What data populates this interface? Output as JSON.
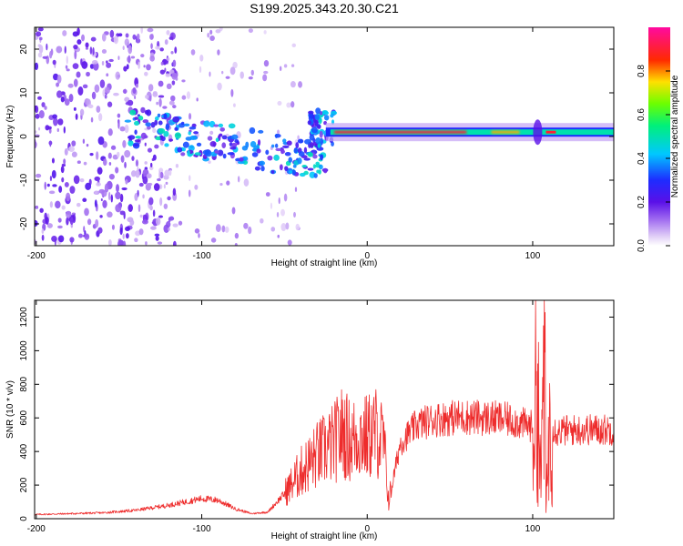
{
  "title": "S199.2025.343.20.30.C21",
  "colors": {
    "signal": "#ee2c2c",
    "frame": "#000000"
  },
  "chart_data": [
    {
      "type": "heatmap",
      "name": "spectrogram",
      "xlabel": "Height of straight line (km)",
      "ylabel": "Frequency (Hz)",
      "xlim": [
        -201,
        149
      ],
      "ylim": [
        -25,
        25
      ],
      "xticks": [
        -200,
        -100,
        0,
        100
      ],
      "xtick_labels": [
        "-200",
        "-100",
        "0",
        "100"
      ],
      "yticks": [
        -20,
        -10,
        0,
        10,
        20
      ],
      "ytick_labels": [
        "-20",
        "-10",
        "0",
        "10",
        "20"
      ],
      "colorbar": {
        "label": "Normalized spectral amplitude",
        "range": [
          0,
          1
        ],
        "ticks": [
          0,
          0.2,
          0.4,
          0.6,
          0.8
        ],
        "tick_labels": [
          "0.0",
          "0.2",
          "0.4",
          "0.6",
          "0.8"
        ],
        "colormap": "rainbow (white-purple-blue-cyan-green-yellow-red-magenta)"
      },
      "features": [
        {
          "desc": "strong horizontal band",
          "x": [
            -25,
            149
          ],
          "freq_hz": 1,
          "amplitude": 0.9
        },
        {
          "desc": "descending blob trend",
          "x": [
            -145,
            -70
          ],
          "freq_hz_start": 2,
          "freq_hz_end": -5,
          "amplitude": 0.35
        },
        {
          "desc": "scattered noise",
          "x": [
            -201,
            -140
          ],
          "freq_hz": [
            -25,
            25
          ],
          "amplitude": 0.1
        }
      ]
    },
    {
      "type": "line",
      "name": "snr",
      "xlabel": "Height of straight line (km)",
      "ylabel": "SNR (10 * v/v)",
      "xlim": [
        -201,
        149
      ],
      "ylim": [
        0,
        1300
      ],
      "xticks": [
        -200,
        -100,
        0,
        100
      ],
      "xtick_labels": [
        "-200",
        "-100",
        "0",
        "100"
      ],
      "yticks": [
        0,
        200,
        400,
        600,
        800,
        1000,
        1200
      ],
      "ytick_labels": [
        "0",
        "200",
        "400",
        "600",
        "800",
        "1000",
        "1200"
      ],
      "series": [
        {
          "name": "SNR",
          "color": "#ee2c2c",
          "x": [
            -200,
            -180,
            -160,
            -140,
            -120,
            -100,
            -90,
            -80,
            -70,
            -60,
            -50,
            -40,
            -30,
            -20,
            -15,
            -10,
            -5,
            0,
            5,
            10,
            13,
            20,
            30,
            40,
            50,
            60,
            70,
            80,
            90,
            95,
            100,
            103,
            105,
            107,
            108,
            110,
            115,
            120,
            130,
            140,
            149
          ],
          "values": [
            25,
            30,
            35,
            50,
            80,
            120,
            110,
            60,
            30,
            40,
            150,
            280,
            380,
            450,
            520,
            460,
            500,
            480,
            520,
            450,
            100,
            450,
            560,
            590,
            600,
            605,
            600,
            595,
            580,
            560,
            550,
            800,
            150,
            1280,
            50,
            560,
            520,
            525,
            530,
            530,
            530
          ]
        }
      ]
    }
  ]
}
